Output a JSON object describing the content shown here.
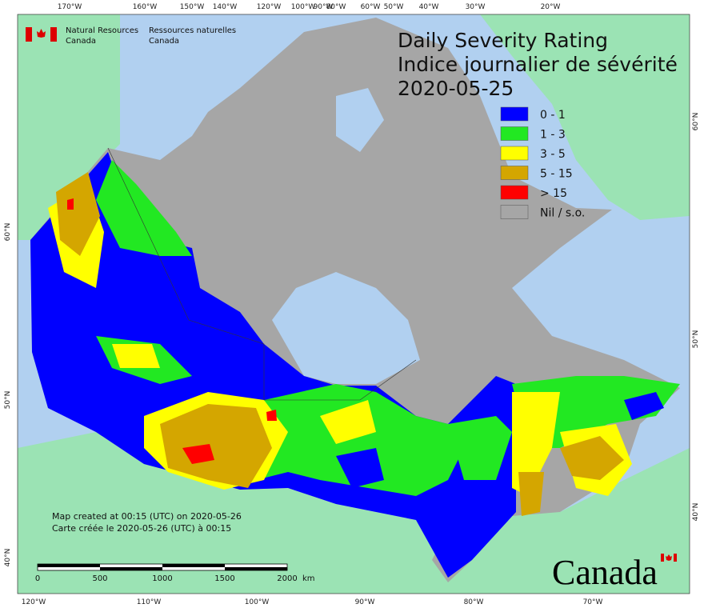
{
  "logo": {
    "en_line1": "Natural Resources",
    "en_line2": "Canada",
    "fr_line1": "Ressources naturelles",
    "fr_line2": "Canada"
  },
  "title": [
    "Daily Severity Rating",
    "Indice journalier de sévérité",
    "2020-05-25"
  ],
  "legend": [
    {
      "label": "0 - 1",
      "color": "#0000ff"
    },
    {
      "label": "1 - 3",
      "color": "#22e822"
    },
    {
      "label": "3 - 5",
      "color": "#ffff00"
    },
    {
      "label": "5 - 15",
      "color": "#d4a600"
    },
    {
      "label": "> 15",
      "color": "#ff0000"
    },
    {
      "label": "Nil / s.o.",
      "color": "#a6a6a6"
    }
  ],
  "credits": [
    "Map created at 00:15 (UTC) on 2020-05-26",
    "Carte créée le 2020-05-26 (UTC) à 00:15"
  ],
  "scale": {
    "labels": [
      "0",
      "500",
      "1000",
      "1500",
      "2000"
    ],
    "unit": "km"
  },
  "wordmark": "Canada",
  "graticule": {
    "top": [
      "170°W",
      "160°W",
      "150°W",
      "140°W",
      "120°W",
      "100°W",
      "90°W",
      "80°W",
      "60°W",
      "50°W",
      "40°W",
      "30°W",
      "20°W"
    ],
    "bottom": [
      "120°W",
      "110°W",
      "100°W",
      "90°W",
      "80°W",
      "70°W"
    ],
    "left": [
      "60°N",
      "50°N",
      "40°N"
    ],
    "right": [
      "60°N",
      "50°N",
      "40°N"
    ]
  }
}
